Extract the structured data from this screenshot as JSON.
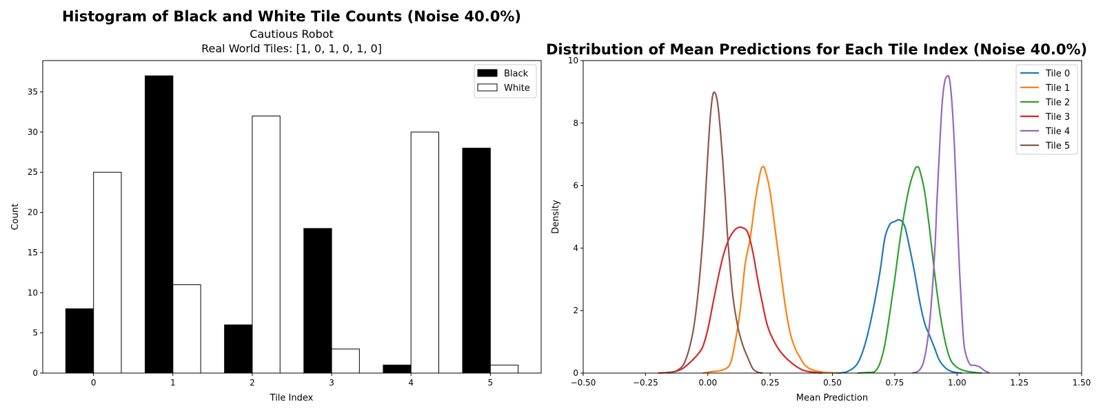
{
  "chart_data": [
    {
      "type": "bar",
      "title": "Histogram of Black and White Tile Counts (Noise 40.0%)",
      "subtitle_lines": [
        "Cautious Robot",
        "Real World Tiles: [1, 0, 1, 0, 1, 0]"
      ],
      "xlabel": "Tile Index",
      "ylabel": "Count",
      "categories": [
        "0",
        "1",
        "2",
        "3",
        "4",
        "5"
      ],
      "ylim": [
        0,
        38.9
      ],
      "yticks": [
        0,
        5,
        10,
        15,
        20,
        25,
        30,
        35
      ],
      "series": [
        {
          "name": "Black",
          "values": [
            8,
            37,
            6,
            18,
            1,
            28
          ],
          "fill": "#000000",
          "stroke": "#000000"
        },
        {
          "name": "White",
          "values": [
            25,
            11,
            32,
            3,
            30,
            1
          ],
          "fill": "#ffffff",
          "stroke": "#000000"
        }
      ],
      "legend": "top-right",
      "grid": false
    },
    {
      "type": "line",
      "title": "Distribution of Mean Predictions for Each Tile Index (Noise 40.0%)",
      "xlabel": "Mean Prediction",
      "ylabel": "Density",
      "xlim": [
        -0.5,
        1.5
      ],
      "ylim": [
        0,
        10
      ],
      "xticks": [
        "−0.50",
        "−0.25",
        "0.00",
        "0.25",
        "0.50",
        "0.75",
        "1.00",
        "1.25",
        "1.50"
      ],
      "xtick_values": [
        -0.5,
        -0.25,
        0,
        0.25,
        0.5,
        0.75,
        1.0,
        1.25,
        1.5
      ],
      "yticks": [
        0,
        2,
        4,
        6,
        8,
        10
      ],
      "legend": "top-right",
      "grid": false,
      "series": [
        {
          "name": "Tile 0",
          "color": "#1f77b4",
          "x": [
            0.52,
            0.56,
            0.6,
            0.63,
            0.66,
            0.69,
            0.71,
            0.73,
            0.75,
            0.77,
            0.79,
            0.81,
            0.83,
            0.85,
            0.87,
            0.89,
            0.91,
            0.93,
            0.96,
            0.99,
            1.02
          ],
          "y": [
            0,
            0.05,
            0.3,
            0.9,
            1.9,
            3.2,
            4.3,
            4.75,
            4.85,
            4.9,
            4.7,
            4.0,
            3.2,
            2.3,
            1.6,
            1.2,
            0.8,
            0.4,
            0.12,
            0.03,
            0
          ]
        },
        {
          "name": "Tile 1",
          "color": "#ff7f0e",
          "x": [
            -0.02,
            0.02,
            0.06,
            0.09,
            0.11,
            0.13,
            0.15,
            0.17,
            0.19,
            0.21,
            0.22,
            0.23,
            0.25,
            0.27,
            0.29,
            0.31,
            0.33,
            0.35,
            0.37,
            0.39,
            0.42,
            0.46,
            0.5,
            0.52
          ],
          "y": [
            0,
            0.05,
            0.1,
            0.3,
            1.0,
            2.0,
            3.5,
            4.3,
            5.5,
            6.4,
            6.6,
            6.5,
            5.8,
            4.6,
            3.4,
            2.2,
            1.3,
            0.8,
            0.5,
            0.25,
            0.1,
            0.03,
            0.01,
            0
          ]
        },
        {
          "name": "Tile 2",
          "color": "#2ca02c",
          "x": [
            0.6,
            0.64,
            0.67,
            0.69,
            0.71,
            0.73,
            0.75,
            0.77,
            0.79,
            0.81,
            0.83,
            0.84,
            0.85,
            0.87,
            0.89,
            0.91,
            0.93,
            0.95,
            0.97,
            0.99,
            1.02,
            1.06,
            1.1
          ],
          "y": [
            0,
            0.02,
            0.05,
            0.3,
            0.9,
            1.9,
            3.0,
            4.2,
            5.2,
            6.0,
            6.5,
            6.6,
            6.5,
            5.8,
            4.6,
            3.2,
            2.0,
            1.1,
            0.5,
            0.25,
            0.1,
            0.03,
            0
          ]
        },
        {
          "name": "Tile 3",
          "color": "#d62728",
          "x": [
            -0.2,
            -0.16,
            -0.13,
            -0.1,
            -0.07,
            -0.04,
            -0.02,
            0.0,
            0.02,
            0.04,
            0.06,
            0.08,
            0.1,
            0.12,
            0.14,
            0.16,
            0.18,
            0.2,
            0.22,
            0.24,
            0.27,
            0.3,
            0.34,
            0.38,
            0.42,
            0.46
          ],
          "y": [
            0,
            0.02,
            0.05,
            0.15,
            0.35,
            0.6,
            0.85,
            1.4,
            2.2,
            3.0,
            3.7,
            4.2,
            4.5,
            4.65,
            4.65,
            4.5,
            3.9,
            3.0,
            2.2,
            1.5,
            0.95,
            0.6,
            0.3,
            0.1,
            0.03,
            0
          ]
        },
        {
          "name": "Tile 4",
          "color": "#9467bd",
          "x": [
            0.82,
            0.85,
            0.87,
            0.89,
            0.91,
            0.92,
            0.93,
            0.94,
            0.95,
            0.96,
            0.97,
            0.98,
            0.99,
            1.0,
            1.01,
            1.02,
            1.03,
            1.05,
            1.07,
            1.09,
            1.11,
            1.13
          ],
          "y": [
            0,
            0.1,
            0.5,
            1.6,
            3.8,
            5.6,
            7.2,
            8.6,
            9.3,
            9.5,
            9.4,
            8.6,
            7.2,
            5.2,
            3.3,
            1.8,
            0.8,
            0.3,
            0.25,
            0.2,
            0.08,
            0
          ]
        },
        {
          "name": "Tile 5",
          "color": "#8c564b",
          "x": [
            -0.16,
            -0.12,
            -0.09,
            -0.06,
            -0.04,
            -0.02,
            -0.01,
            0.0,
            0.01,
            0.02,
            0.03,
            0.04,
            0.05,
            0.06,
            0.07,
            0.08,
            0.1,
            0.12,
            0.14,
            0.16,
            0.18,
            0.2,
            0.22
          ],
          "y": [
            0,
            0.1,
            0.4,
            1.3,
            2.5,
            4.3,
            5.6,
            7.0,
            8.2,
            8.9,
            8.95,
            8.6,
            7.8,
            6.8,
            5.6,
            4.3,
            2.5,
            1.5,
            0.9,
            0.5,
            0.15,
            0.03,
            0
          ]
        }
      ]
    }
  ]
}
